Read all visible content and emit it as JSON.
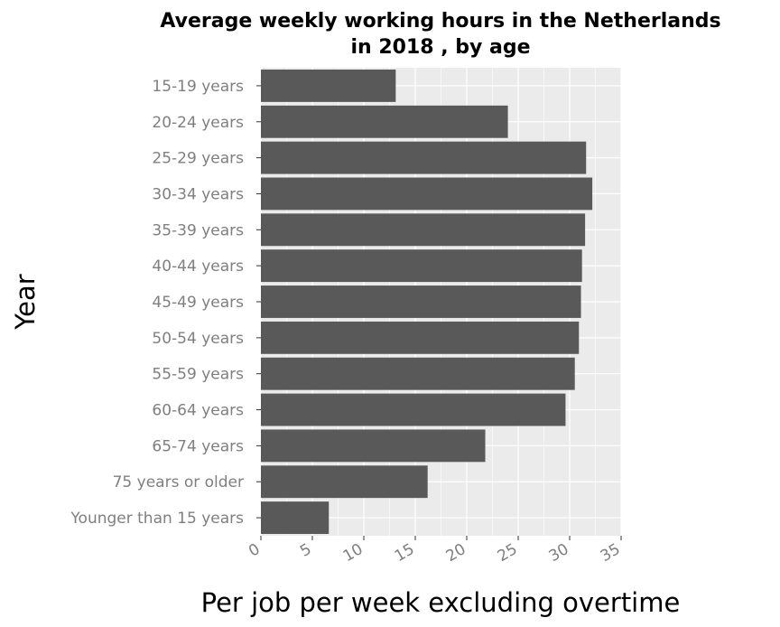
{
  "chart_data": {
    "type": "bar",
    "orientation": "horizontal",
    "title_lines": [
      "Average weekly working hours in the Netherlands",
      "in 2018 , by age"
    ],
    "xlabel": "Per job per week excluding overtime",
    "ylabel": "Year",
    "xlim": [
      0,
      35
    ],
    "xticks": [
      "0",
      "5",
      "10",
      "15",
      "20",
      "25",
      "30",
      "35"
    ],
    "grid": true,
    "categories": [
      "15-19 years",
      "20-24 years",
      "25-29 years",
      "30-34 years",
      "35-39 years",
      "40-44 years",
      "45-49 years",
      "50-54 years",
      "55-59 years",
      "60-64 years",
      "65-74 years",
      "75 years or older",
      "Younger than 15 years"
    ],
    "values": [
      13.1,
      24.0,
      31.6,
      32.2,
      31.5,
      31.2,
      31.1,
      30.9,
      30.5,
      29.6,
      21.8,
      16.2,
      6.6
    ],
    "colors": {
      "bar": "#595959",
      "panel": "#ebebeb",
      "grid": "#ffffff"
    }
  }
}
